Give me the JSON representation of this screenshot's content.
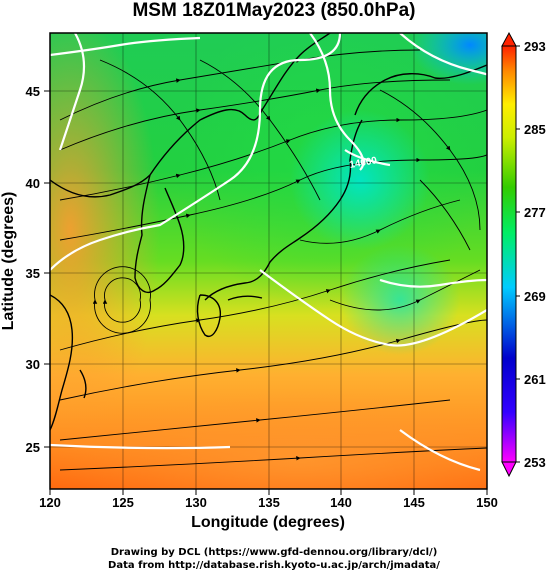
{
  "title": "MSM 18Z01May2023 (850.0hPa)",
  "chart_data": {
    "type": "heatmap",
    "title": "MSM 18Z01May2023 (850.0hPa)",
    "xlabel": "Longitude (degrees)",
    "ylabel": "Latitude  (degrees)",
    "xlim": [
      120,
      150
    ],
    "ylim": [
      22.4,
      47.6
    ],
    "x_ticks": [
      "120",
      "125",
      "130",
      "135",
      "140",
      "145",
      "150"
    ],
    "y_ticks": [
      "25",
      "30",
      "35",
      "40",
      "45"
    ],
    "grid": true,
    "colorbar": {
      "min": 253,
      "max": 293,
      "tick_labels": [
        "253",
        "261",
        "269",
        "277",
        "285",
        "293"
      ],
      "colors": [
        "#ff00ff",
        "#0000ff",
        "#00ccff",
        "#00ff66",
        "#33dd00",
        "#ffff00",
        "#ff8800",
        "#ff0000"
      ]
    },
    "contour_label": "14000"
  },
  "credits": {
    "drawing": "Drawing by DCL (https://www.gfd-dennou.org/library/dcl/)",
    "data": "Data from http://database.rish.kyoto-u.ac.jp/arch/jmadata/"
  }
}
